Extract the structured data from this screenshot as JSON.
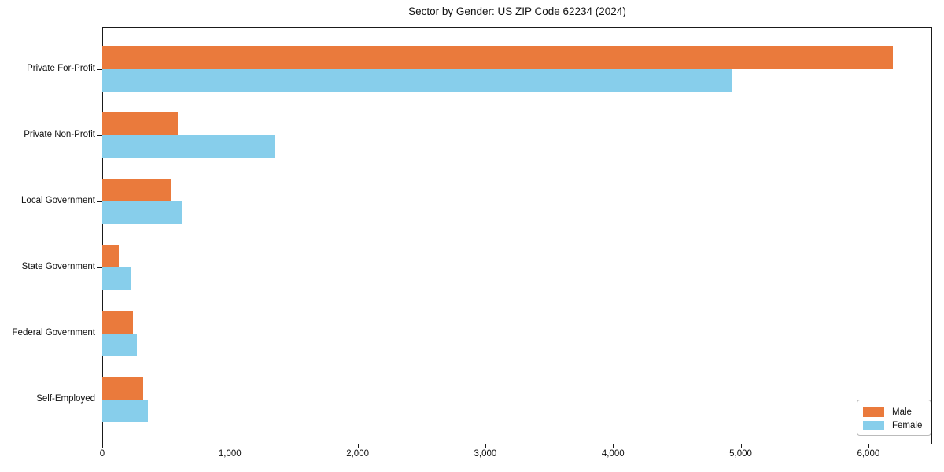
{
  "chart_data": {
    "type": "bar",
    "orientation": "horizontal",
    "title": "Sector by Gender: US ZIP Code 62234 (2024)",
    "categories": [
      "Private For-Profit",
      "Private Non-Profit",
      "Local Government",
      "State Government",
      "Federal Government",
      "Self-Employed"
    ],
    "series": [
      {
        "name": "Male",
        "color": "#EA7A3C",
        "values": [
          6190,
          590,
          540,
          130,
          240,
          320
        ]
      },
      {
        "name": "Female",
        "color": "#87CEEB",
        "values": [
          4930,
          1350,
          620,
          230,
          270,
          360
        ]
      }
    ],
    "xlabel": "",
    "ylabel": "",
    "xlim": [
      0,
      6500
    ],
    "x_ticks": [
      0,
      1000,
      2000,
      3000,
      4000,
      5000,
      6000
    ],
    "x_tick_labels": [
      "0",
      "1,000",
      "2,000",
      "3,000",
      "4,000",
      "5,000",
      "6,000"
    ],
    "grid": false,
    "legend": {
      "position": "lower-right",
      "entries": [
        "Male",
        "Female"
      ]
    },
    "background_color": "#ffffff",
    "spine_color": "#1a1a1a"
  }
}
